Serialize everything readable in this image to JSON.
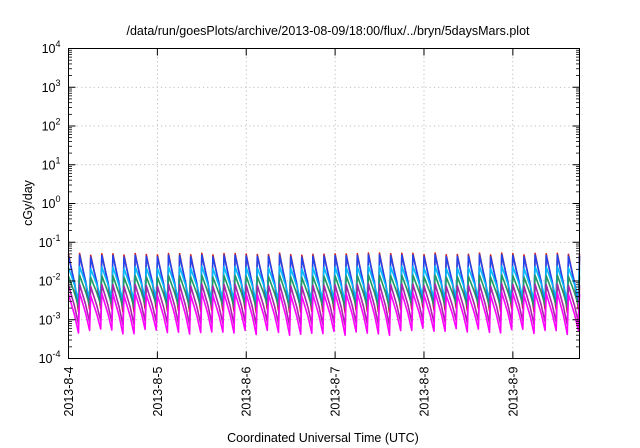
{
  "chart_data": {
    "type": "line",
    "title": "/data/run/goesPlots/archive/2013-08-09/18:00/flux/../bryn/5daysMars.plot",
    "xlabel": "Coordinated Universal Time (UTC)",
    "ylabel": "cGy/day",
    "y_scale": "log",
    "ylim": [
      0.0001,
      10000
    ],
    "y_ticks": [
      {
        "value": 0.0001,
        "base": "10",
        "exp": "-4"
      },
      {
        "value": 0.001,
        "base": "10",
        "exp": "-3"
      },
      {
        "value": 0.01,
        "base": "10",
        "exp": "-2"
      },
      {
        "value": 0.1,
        "base": "10",
        "exp": "-1"
      },
      {
        "value": 1,
        "base": "10",
        "exp": "0"
      },
      {
        "value": 10,
        "base": "10",
        "exp": "1"
      },
      {
        "value": 100,
        "base": "10",
        "exp": "2"
      },
      {
        "value": 1000,
        "base": "10",
        "exp": "3"
      },
      {
        "value": 10000,
        "base": "10",
        "exp": "4"
      }
    ],
    "xlim": [
      "2013-08-04 00:00",
      "2013-08-09 18:00"
    ],
    "x_ticks": [
      {
        "value": "2013-08-04 00:00",
        "label": "2013-8-4"
      },
      {
        "value": "2013-08-05 00:00",
        "label": "2013-8-5"
      },
      {
        "value": "2013-08-06 00:00",
        "label": "2013-8-6"
      },
      {
        "value": "2013-08-07 00:00",
        "label": "2013-8-7"
      },
      {
        "value": "2013-08-08 00:00",
        "label": "2013-8-8"
      },
      {
        "value": "2013-08-09 00:00",
        "label": "2013-8-9"
      }
    ],
    "grid": true,
    "legend": "none",
    "oscillation_period_hours": 3,
    "series": [
      {
        "color": "#cc2222",
        "peak_range": [
          0.045,
          0.07
        ],
        "trough_range": [
          0.0015,
          0.0025
        ]
      },
      {
        "color": "#2244ee",
        "peak_range": [
          0.04,
          0.065
        ],
        "trough_range": [
          0.002,
          0.0035
        ]
      },
      {
        "color": "#00bbff",
        "peak_range": [
          0.02,
          0.035
        ],
        "trough_range": [
          0.003,
          0.005
        ]
      },
      {
        "color": "#229966",
        "peak_range": [
          0.012,
          0.02
        ],
        "trough_range": [
          0.002,
          0.003
        ]
      },
      {
        "color": "#aa22aa",
        "peak_range": [
          0.007,
          0.012
        ],
        "trough_range": [
          0.0007,
          0.0012
        ]
      },
      {
        "color": "#ff00ff",
        "peak_range": [
          0.004,
          0.008
        ],
        "trough_range": [
          0.0004,
          0.0008
        ]
      }
    ]
  }
}
